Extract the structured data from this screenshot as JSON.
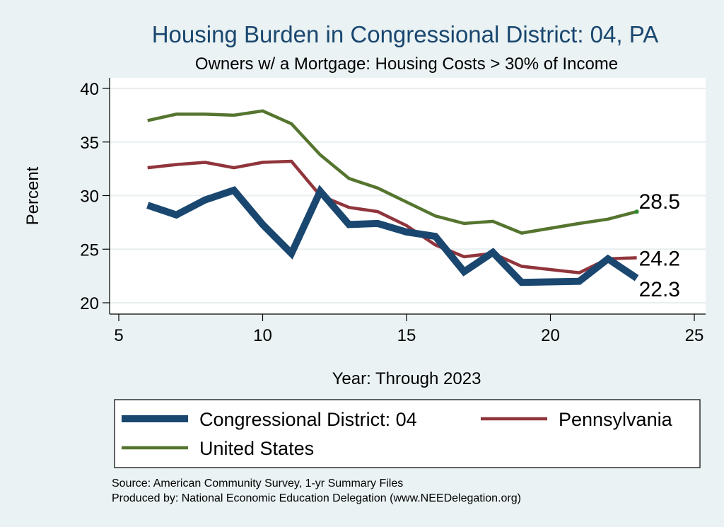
{
  "chart_data": {
    "type": "line",
    "title": "Housing Burden in Congressional District:  04, PA",
    "subtitle": "Owners w/ a Mortgage: Housing Costs > 30% of Income",
    "xlabel": "Year: Through 2023",
    "ylabel": "Percent",
    "xlim": [
      5,
      25
    ],
    "ylim": [
      20,
      40
    ],
    "xticks": [
      5,
      10,
      15,
      20,
      25
    ],
    "yticks": [
      20,
      25,
      30,
      35,
      40
    ],
    "grid": true,
    "legend_position": "bottom",
    "series": [
      {
        "name": "Congressional District:  04",
        "color": "#1a476f",
        "x": [
          6,
          7,
          8,
          9,
          10,
          11,
          12,
          13,
          14,
          15,
          16,
          17,
          18,
          19,
          21,
          22,
          23
        ],
        "values": [
          29.1,
          28.2,
          29.6,
          30.5,
          27.3,
          24.6,
          30.4,
          27.3,
          27.4,
          26.6,
          26.2,
          22.9,
          24.7,
          21.9,
          22.0,
          24.1,
          22.3
        ],
        "end_label": "22.3"
      },
      {
        "name": "Pennsylvania",
        "color": "#90353b",
        "x": [
          6,
          7,
          8,
          9,
          10,
          11,
          12,
          13,
          14,
          15,
          16,
          17,
          18,
          19,
          21,
          22,
          23
        ],
        "values": [
          32.6,
          32.9,
          33.1,
          32.6,
          33.1,
          33.2,
          30.0,
          28.9,
          28.5,
          27.2,
          25.4,
          24.3,
          24.6,
          23.4,
          22.8,
          24.1,
          24.2
        ],
        "end_label": "24.2"
      },
      {
        "name": "United States",
        "color": "#55752f",
        "x": [
          6,
          7,
          8,
          9,
          10,
          11,
          12,
          13,
          14,
          15,
          16,
          17,
          18,
          19,
          21,
          22,
          23
        ],
        "values": [
          37.0,
          37.6,
          37.6,
          37.5,
          37.9,
          36.7,
          33.8,
          31.6,
          30.7,
          29.4,
          28.1,
          27.4,
          27.6,
          26.5,
          27.4,
          27.8,
          28.5
        ],
        "end_label": "28.5"
      }
    ],
    "source_lines": [
      "Source: American Community Survey, 1-yr Summary Files",
      "Produced by: National Economic Education Delegation (www.NEEDelegation.org)"
    ]
  }
}
